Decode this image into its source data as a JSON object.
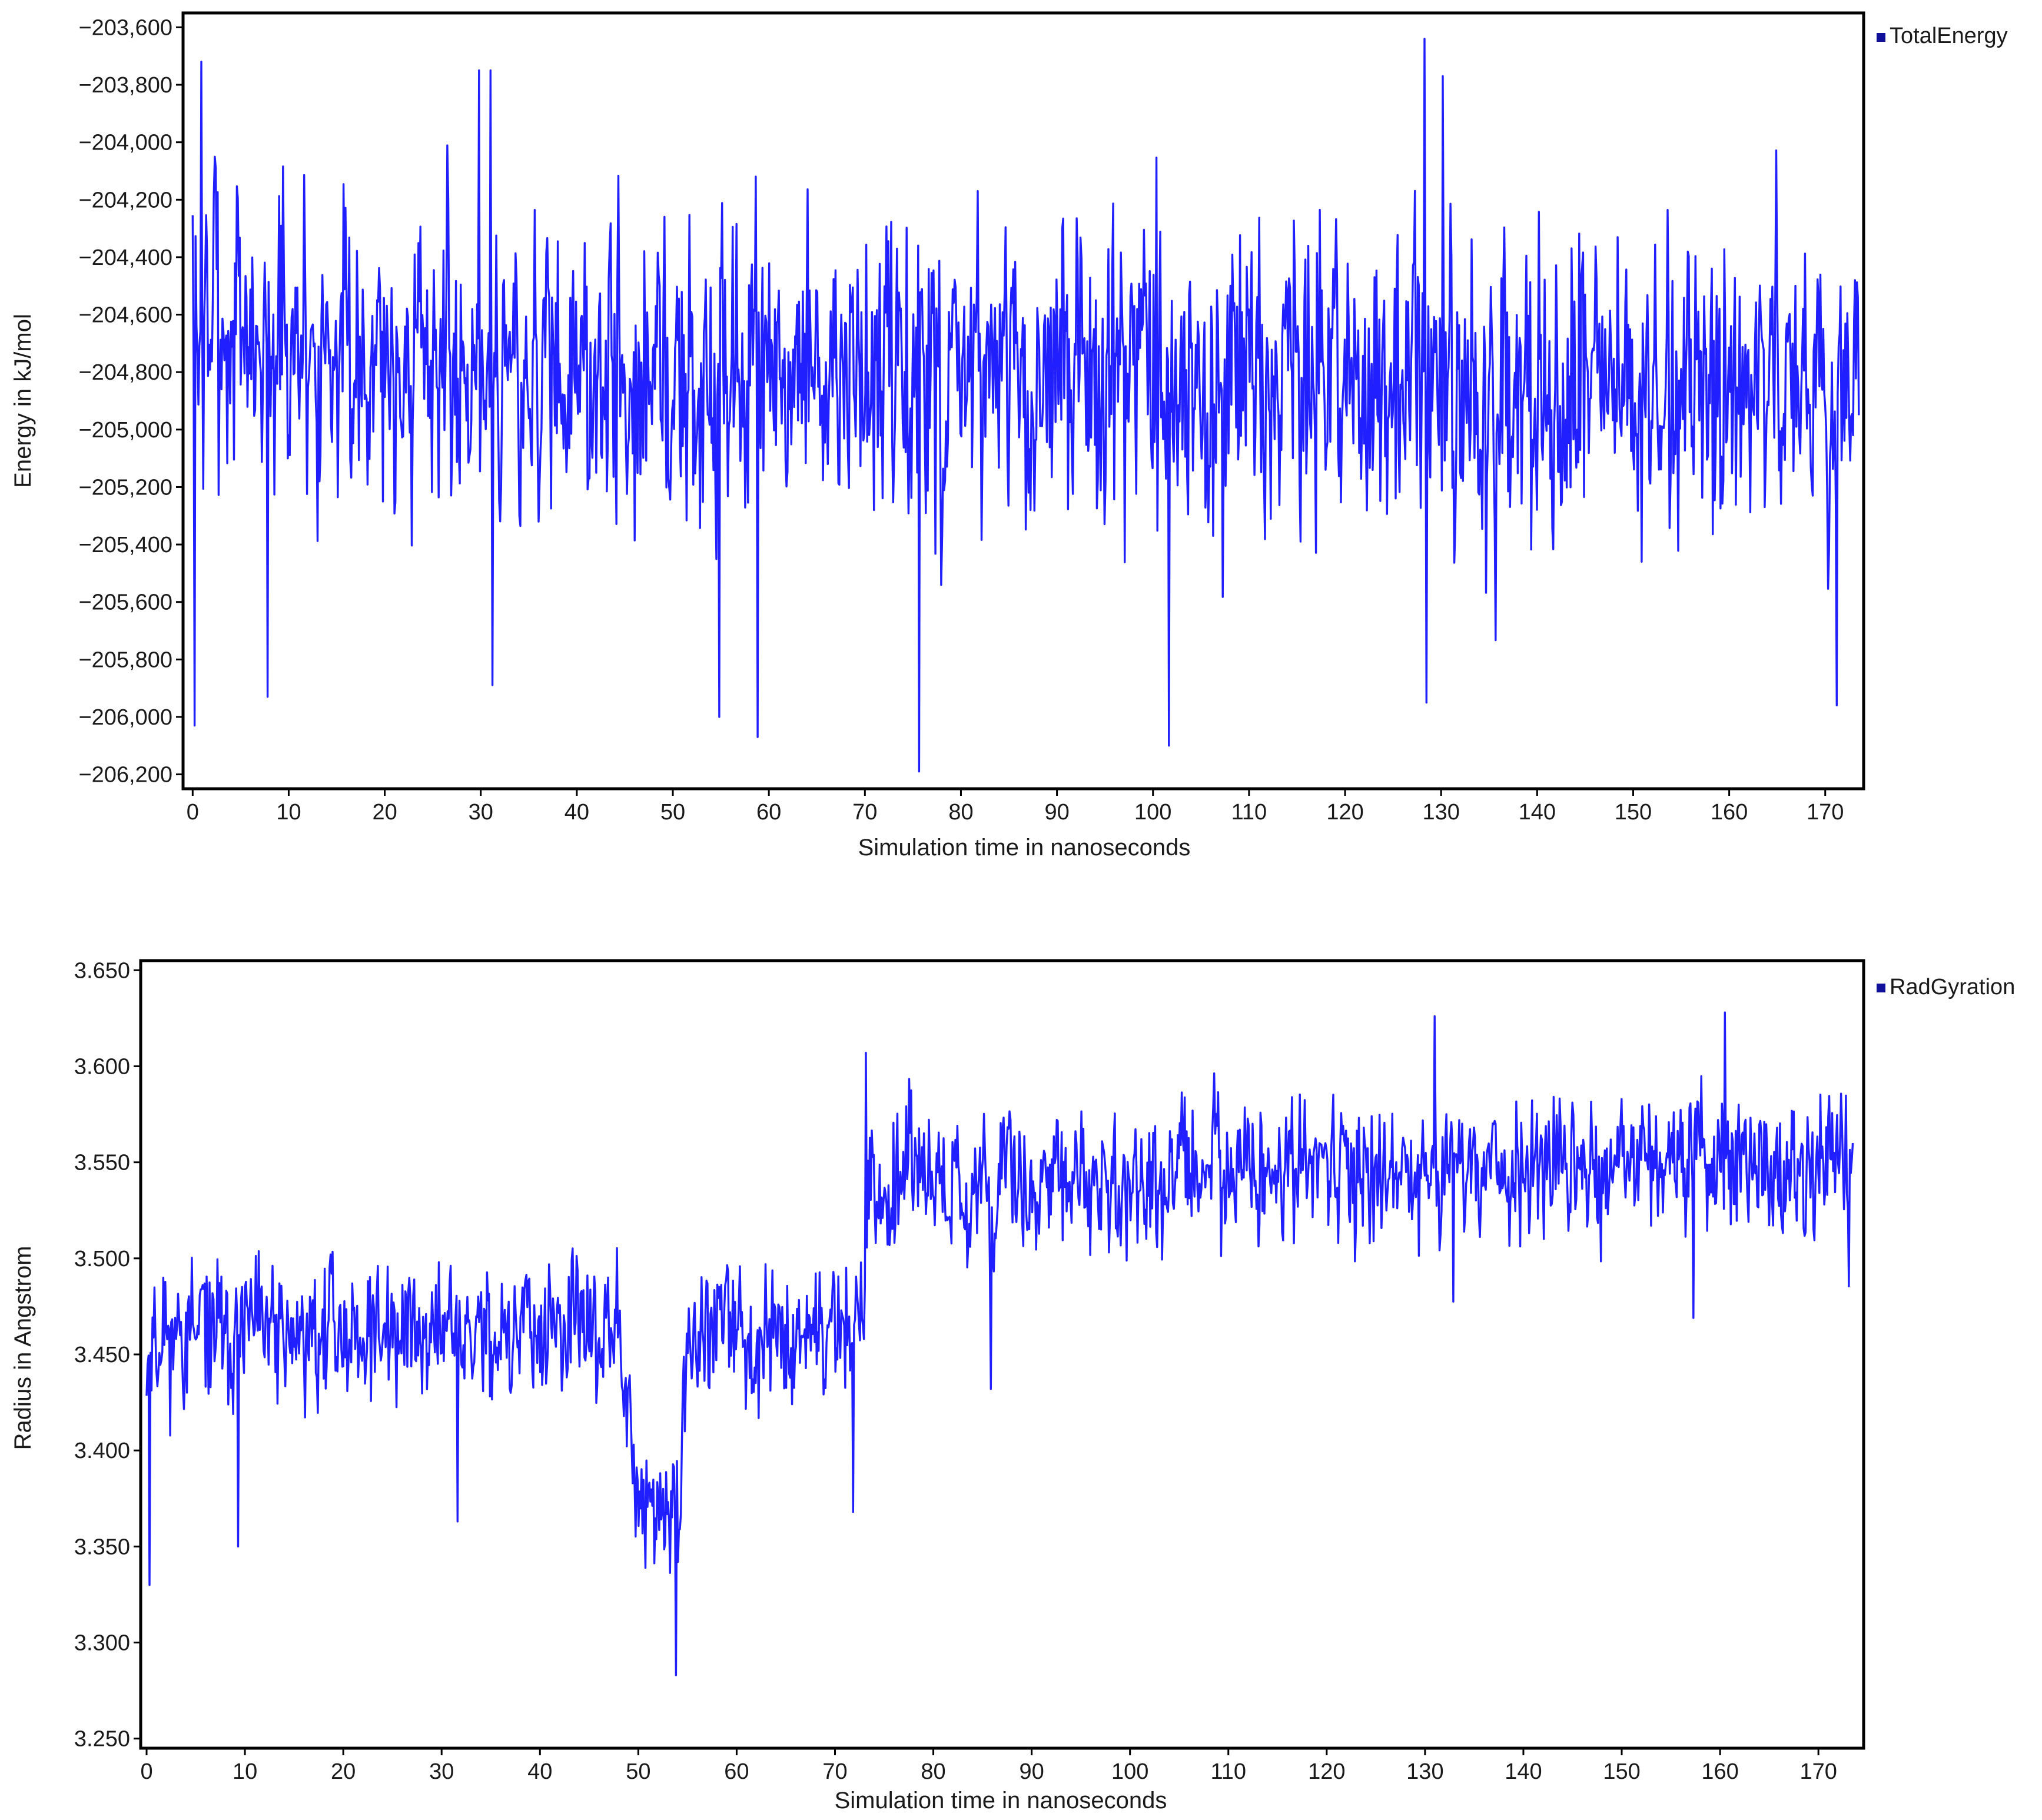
{
  "colors": {
    "series": "#1f1fff",
    "legend_swatch": "#10109a",
    "frame": "#000000"
  },
  "chart_data": [
    {
      "type": "line",
      "title": "",
      "xlabel": "Simulation time in nanoseconds",
      "ylabel": "Energy in  kJ/mol",
      "xlim": [
        -1,
        174
      ],
      "ylim": [
        -206250,
        -203550
      ],
      "xticks": [
        0,
        10,
        20,
        30,
        40,
        50,
        60,
        70,
        80,
        90,
        100,
        110,
        120,
        130,
        140,
        150,
        160,
        170
      ],
      "xtick_labels": [
        "0",
        "10",
        "20",
        "30",
        "40",
        "50",
        "60",
        "70",
        "80",
        "90",
        "100",
        "110",
        "120",
        "130",
        "140",
        "150",
        "160",
        "170"
      ],
      "yticks": [
        -203600,
        -203800,
        -204000,
        -204200,
        -204400,
        -204600,
        -204800,
        -205000,
        -205200,
        -205400,
        -205600,
        -205800,
        -206000,
        -206200
      ],
      "ytick_labels": [
        "−203,600",
        "−203,800",
        "−204,000",
        "−204,200",
        "−204,400",
        "−204,600",
        "−204,800",
        "−205,000",
        "−205,200",
        "−205,400",
        "−205,600",
        "−205,800",
        "−206,000",
        "−206,200"
      ],
      "grid": false,
      "legend": "top-right",
      "series": [
        {
          "name": "TotalEnergy",
          "x_range": [
            0,
            173.5
          ],
          "n_points": 1735,
          "noise_seed": 7,
          "baseline_segments": [
            [
              0,
              -204550
            ],
            [
              3,
              -204650
            ],
            [
              10,
              -204700
            ],
            [
              40,
              -204800
            ],
            [
              70,
              -204850
            ],
            [
              173.5,
              -204850
            ]
          ],
          "noise_sd": 330,
          "extremes": [
            {
              "x": 0.2,
              "y": -206030
            },
            {
              "x": 0.9,
              "y": -203720
            },
            {
              "x": 7.8,
              "y": -205930
            },
            {
              "x": 29.8,
              "y": -203750
            },
            {
              "x": 31.0,
              "y": -203750
            },
            {
              "x": 54.8,
              "y": -206000
            },
            {
              "x": 58.8,
              "y": -206070
            },
            {
              "x": 75.6,
              "y": -206190
            },
            {
              "x": 101.7,
              "y": -206100
            },
            {
              "x": 128.3,
              "y": -203640
            },
            {
              "x": 128.5,
              "y": -205950
            },
            {
              "x": 130.2,
              "y": -203770
            },
            {
              "x": 171.2,
              "y": -205960
            },
            {
              "x": 173.5,
              "y": -204950
            }
          ]
        }
      ]
    },
    {
      "type": "line",
      "title": "",
      "xlabel": "Simulation time in nanoseconds",
      "ylabel": "Radius in Angstrom",
      "xlim": [
        -0.6,
        174.6
      ],
      "ylim": [
        3.245,
        3.655
      ],
      "xticks": [
        0,
        10,
        20,
        30,
        40,
        50,
        60,
        70,
        80,
        90,
        100,
        110,
        120,
        130,
        140,
        150,
        160,
        170
      ],
      "xtick_labels": [
        "0",
        "10",
        "20",
        "30",
        "40",
        "50",
        "60",
        "70",
        "80",
        "90",
        "100",
        "110",
        "120",
        "130",
        "140",
        "150",
        "160",
        "170"
      ],
      "yticks": [
        3.25,
        3.3,
        3.35,
        3.4,
        3.45,
        3.5,
        3.55,
        3.6,
        3.65
      ],
      "ytick_labels": [
        "3.250",
        "3.300",
        "3.350",
        "3.400",
        "3.450",
        "3.500",
        "3.550",
        "3.600",
        "3.650"
      ],
      "grid": false,
      "legend": "top-right",
      "series": [
        {
          "name": "RadGyration",
          "x_range": [
            0,
            173.5
          ],
          "n_points": 1735,
          "noise_seed": 11,
          "baseline_segments": [
            [
              0,
              3.46
            ],
            [
              48,
              3.462
            ],
            [
              50,
              3.37
            ],
            [
              54,
              3.37
            ],
            [
              55,
              3.46
            ],
            [
              72.5,
              3.465
            ],
            [
              73.5,
              3.535
            ],
            [
              110,
              3.545
            ],
            [
              173.5,
              3.55
            ]
          ],
          "noise_sd": 0.023,
          "extremes": [
            {
              "x": 0.3,
              "y": 3.33
            },
            {
              "x": 9.3,
              "y": 3.35
            },
            {
              "x": 31.6,
              "y": 3.363
            },
            {
              "x": 53.8,
              "y": 3.283
            },
            {
              "x": 71.8,
              "y": 3.368
            },
            {
              "x": 73.1,
              "y": 3.607
            },
            {
              "x": 85.8,
              "y": 3.432
            },
            {
              "x": 131.0,
              "y": 3.626
            },
            {
              "x": 157.3,
              "y": 3.469
            },
            {
              "x": 160.5,
              "y": 3.628
            },
            {
              "x": 173.5,
              "y": 3.56
            }
          ]
        }
      ]
    }
  ]
}
